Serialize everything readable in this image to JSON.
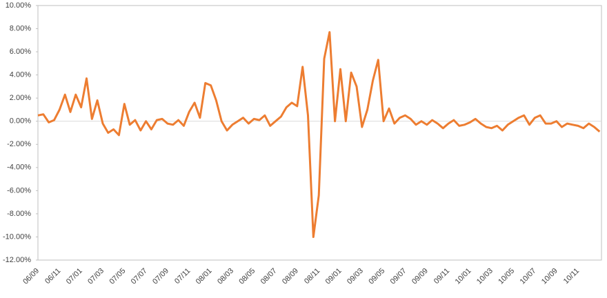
{
  "chart_data": {
    "type": "line",
    "categories": [
      "06/09",
      null,
      null,
      null,
      "06/11",
      null,
      null,
      null,
      "07/01",
      null,
      null,
      null,
      "07/03",
      null,
      null,
      null,
      "07/05",
      null,
      null,
      null,
      "07/07",
      null,
      null,
      null,
      "07/09",
      null,
      null,
      null,
      "07/11",
      null,
      null,
      null,
      "08/01",
      null,
      null,
      null,
      "08/03",
      null,
      null,
      null,
      "08/05",
      null,
      null,
      null,
      "08/07",
      null,
      null,
      null,
      "08/09",
      null,
      null,
      null,
      "08/11",
      null,
      null,
      null,
      "09/01",
      null,
      null,
      null,
      "09/03",
      null,
      null,
      null,
      "09/05",
      null,
      null,
      null,
      "09/07",
      null,
      null,
      null,
      "09/09",
      null,
      null,
      null,
      "09/11",
      null,
      null,
      null,
      "10/01",
      null,
      null,
      null,
      "10/03",
      null,
      null,
      null,
      "10/05",
      null,
      null,
      null,
      "10/07",
      null,
      null,
      null,
      "10/09",
      null,
      null,
      null,
      "10/11",
      null,
      null,
      null,
      null
    ],
    "series": [
      {
        "color": "#ed7d31",
        "values": [
          0.5,
          0.6,
          -0.1,
          0.1,
          1.0,
          2.3,
          0.8,
          2.3,
          1.2,
          3.7,
          0.2,
          1.8,
          -0.2,
          -1.0,
          -0.7,
          -1.2,
          1.5,
          -0.3,
          0.1,
          -0.8,
          0.0,
          -0.7,
          0.1,
          0.2,
          -0.2,
          -0.3,
          0.1,
          -0.4,
          0.8,
          1.6,
          0.3,
          3.3,
          3.1,
          1.8,
          0.0,
          -0.8,
          -0.3,
          0.0,
          0.3,
          -0.2,
          0.2,
          0.1,
          0.5,
          -0.4,
          0.0,
          0.4,
          1.2,
          1.6,
          1.3,
          4.7,
          0.5,
          -10.0,
          -6.4,
          5.4,
          7.7,
          0.0,
          4.5,
          0.0,
          4.2,
          3.0,
          -0.5,
          1.0,
          3.5,
          5.3,
          0.0,
          1.1,
          -0.2,
          0.3,
          0.5,
          0.2,
          -0.3,
          0.0,
          -0.3,
          0.1,
          -0.2,
          -0.6,
          -0.2,
          0.1,
          -0.4,
          -0.3,
          -0.1,
          0.2,
          -0.2,
          -0.5,
          -0.6,
          -0.4,
          -0.8,
          -0.3,
          0.0,
          0.3,
          0.5,
          -0.3,
          0.3,
          0.5,
          -0.2,
          -0.2,
          0.0,
          -0.5,
          -0.2,
          -0.3,
          -0.4,
          -0.6,
          -0.2,
          -0.5,
          -0.9
        ]
      }
    ],
    "ylim": [
      -12,
      10
    ],
    "yticks": [
      {
        "value": -12,
        "label": "-12.00%"
      },
      {
        "value": -10,
        "label": "-10.00%"
      },
      {
        "value": -8,
        "label": "-8.00%"
      },
      {
        "value": -6,
        "label": "-6.00%"
      },
      {
        "value": -4,
        "label": "-4.00%"
      },
      {
        "value": -2,
        "label": "-2.00%"
      },
      {
        "value": 0,
        "label": "0.00%"
      },
      {
        "value": 2,
        "label": "2.00%"
      },
      {
        "value": 4,
        "label": "4.00%"
      },
      {
        "value": 6,
        "label": "6.00%"
      },
      {
        "value": 8,
        "label": "8.00%"
      },
      {
        "value": 10,
        "label": "10.00%"
      }
    ]
  }
}
